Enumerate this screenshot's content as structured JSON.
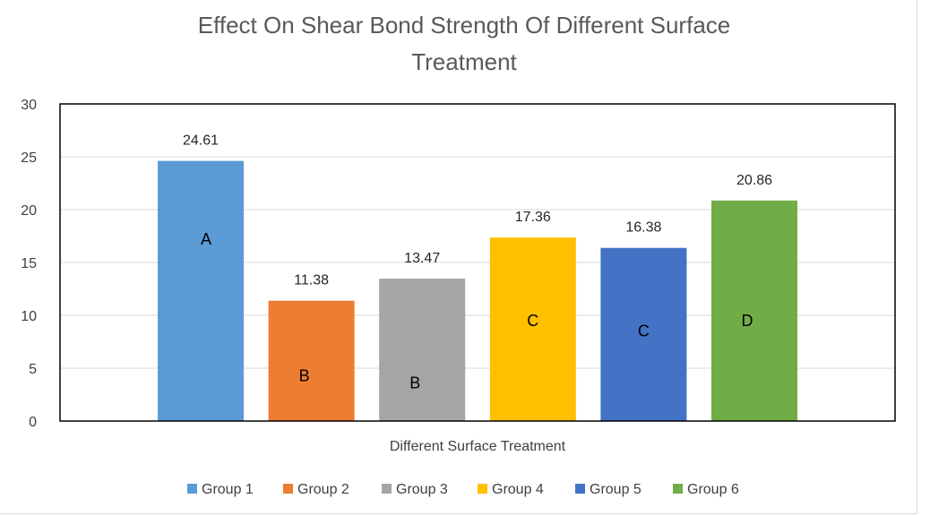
{
  "chart_data": {
    "type": "bar",
    "title": "Effect On Shear Bond Strength Of Different Surface Treatment",
    "title_lines": [
      "Effect On Shear Bond Strength Of Different Surface",
      "Treatment"
    ],
    "xlabel": "Different Surface Treatment",
    "ylabel": "",
    "ylim": [
      0,
      30
    ],
    "yticks": [
      "0",
      "5",
      "10",
      "15",
      "20",
      "25",
      "30"
    ],
    "grid": true,
    "legend_position": "bottom",
    "series": [
      {
        "name": "Group 1",
        "value": 24.61,
        "value_label": "24.61",
        "letter": "A",
        "letter_value": 17.2,
        "color": "#5b9bd5"
      },
      {
        "name": "Group 2",
        "value": 11.38,
        "value_label": "11.38",
        "letter": "B",
        "letter_value": 4.3,
        "color": "#ed7d31"
      },
      {
        "name": "Group 3",
        "value": 13.47,
        "value_label": "13.47",
        "letter": "B",
        "letter_value": 3.6,
        "color": "#a5a5a5"
      },
      {
        "name": "Group 4",
        "value": 17.36,
        "value_label": "17.36",
        "letter": "C",
        "letter_value": 9.5,
        "color": "#ffc000"
      },
      {
        "name": "Group 5",
        "value": 16.38,
        "value_label": "16.38",
        "letter": "C",
        "letter_value": 8.5,
        "color": "#4472c4"
      },
      {
        "name": "Group 6",
        "value": 20.86,
        "value_label": "20.86",
        "letter": "D",
        "letter_value": 9.5,
        "color": "#70ad47"
      }
    ]
  }
}
